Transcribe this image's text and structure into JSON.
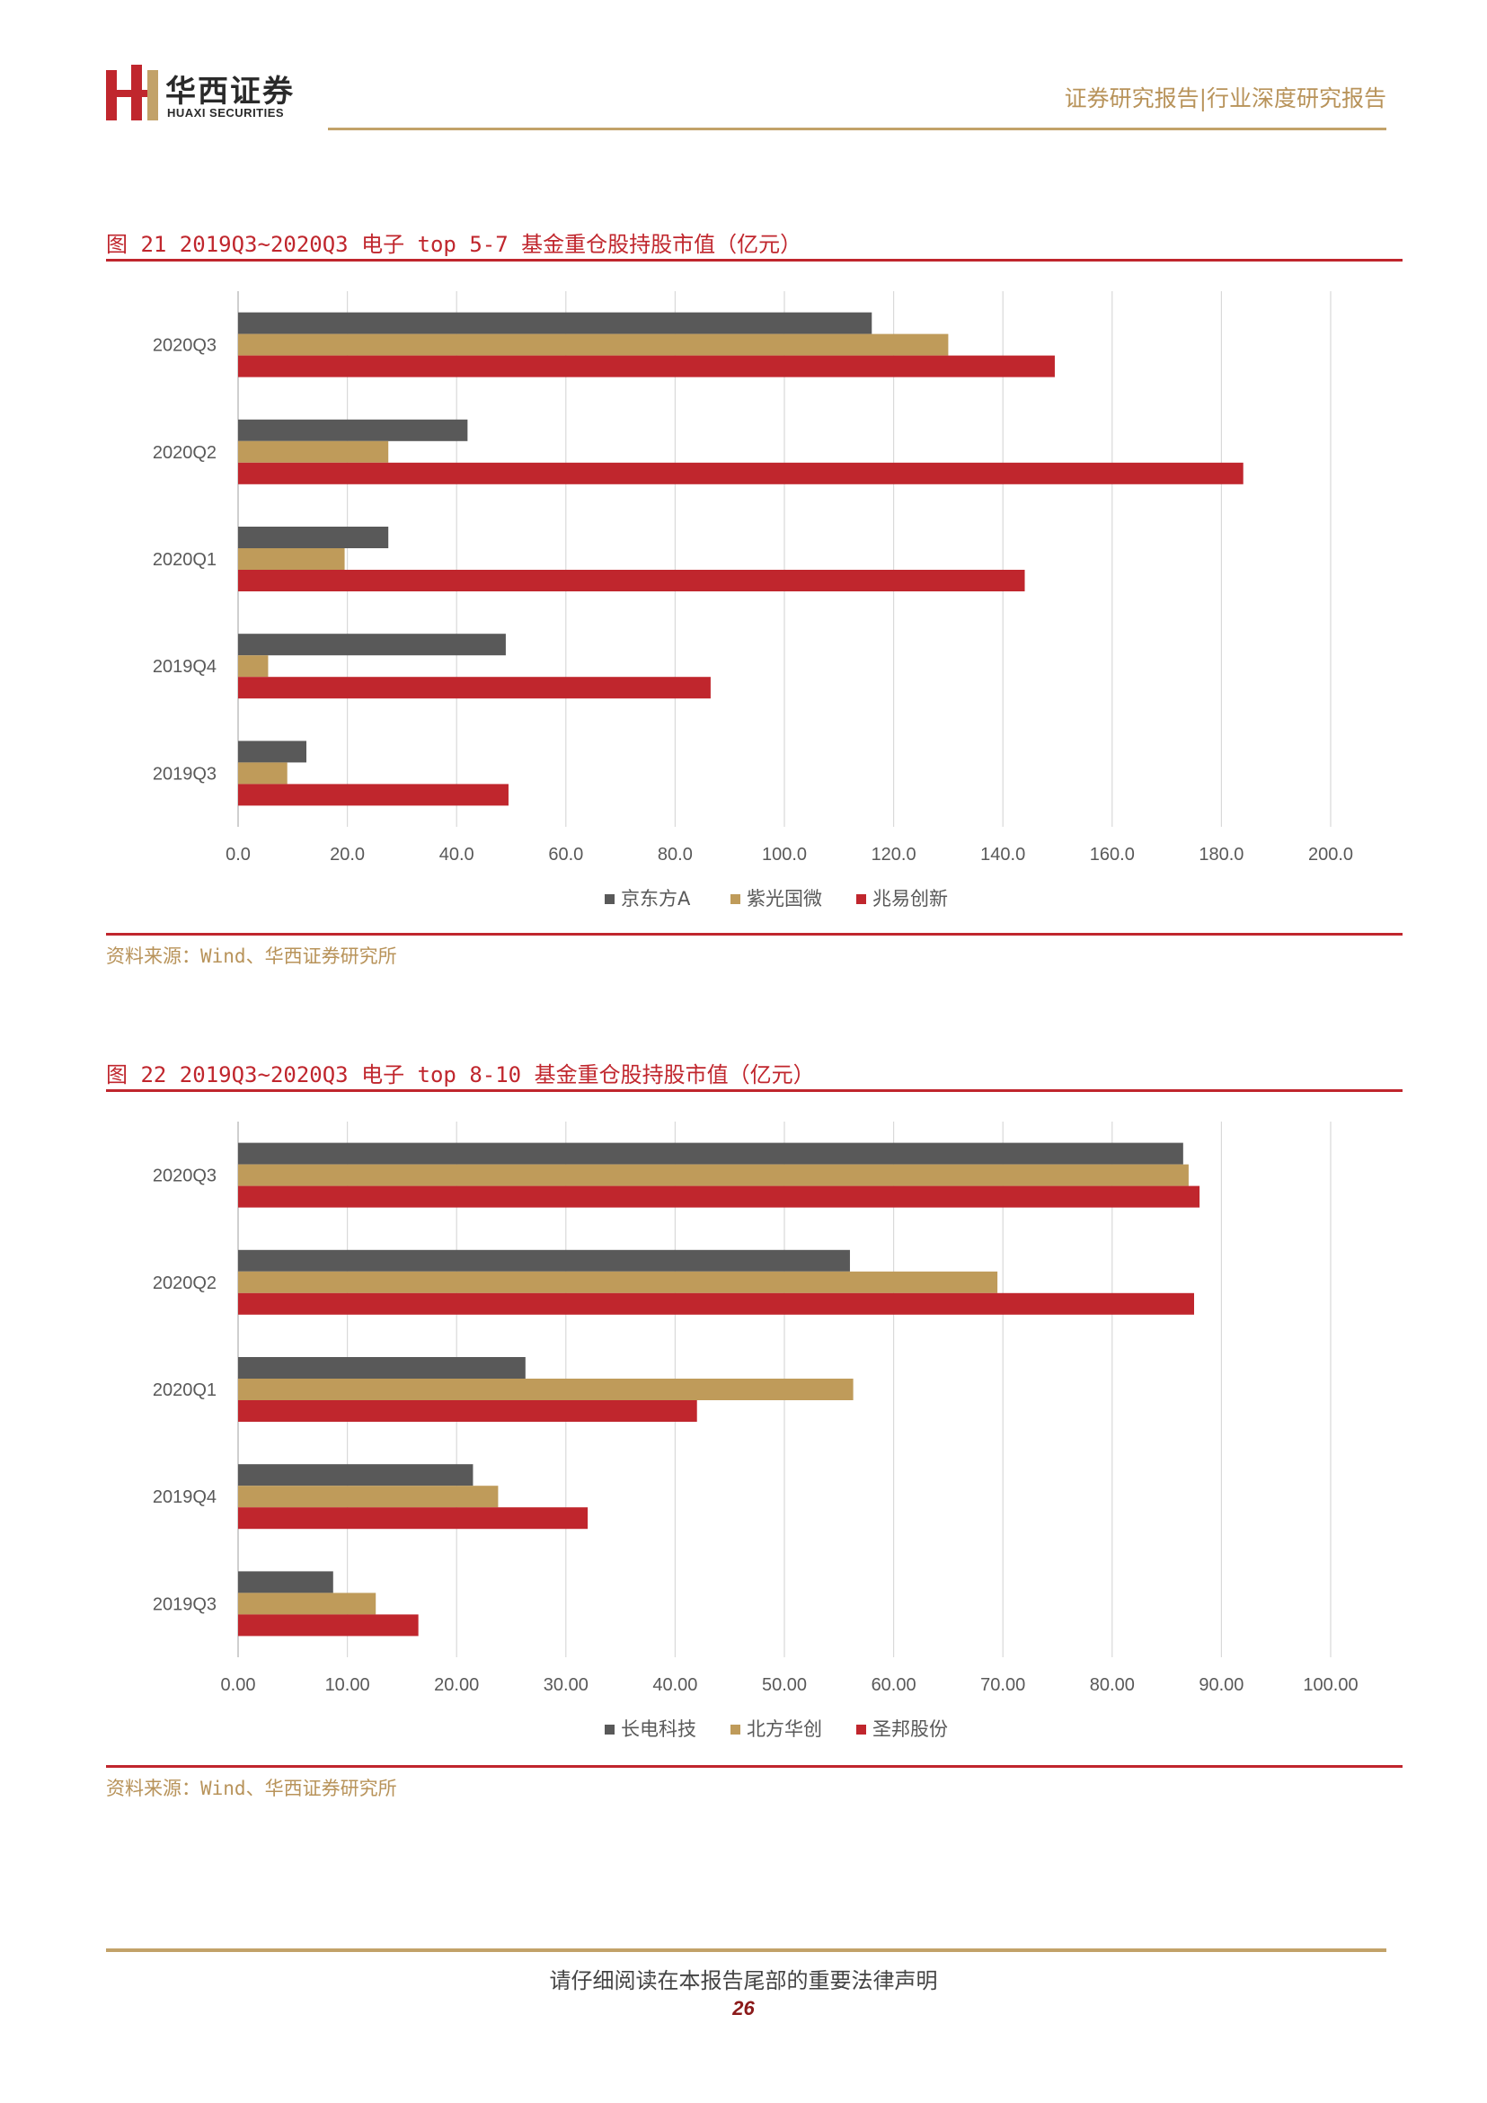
{
  "header": {
    "logo_cn": "华西证券",
    "logo_en": "HUAXI SECURITIES",
    "report_type": "证券研究报告|行业深度研究报告"
  },
  "figures": [
    {
      "title": "图 21 2019Q3~2020Q3 电子 top 5-7 基金重仓股持股市值（亿元）",
      "source": "资料来源：Wind、华西证券研究所"
    },
    {
      "title": "图 22 2019Q3~2020Q3 电子 top 8-10 基金重仓股持股市值（亿元）",
      "source": "资料来源：Wind、华西证券研究所"
    }
  ],
  "chart_data": [
    {
      "type": "bar",
      "orientation": "horizontal",
      "categories": [
        "2020Q3",
        "2020Q2",
        "2020Q1",
        "2019Q4",
        "2019Q3"
      ],
      "series": [
        {
          "name": "京东方A",
          "color": "#595959",
          "values": [
            116.0,
            42.0,
            27.5,
            49.0,
            12.5
          ]
        },
        {
          "name": "紫光国微",
          "color": "#bf9b5a",
          "values": [
            130.0,
            27.5,
            19.5,
            5.5,
            9.0
          ]
        },
        {
          "name": "兆易创新",
          "color": "#c0262d",
          "values": [
            149.5,
            184.0,
            144.0,
            86.5,
            49.5
          ]
        }
      ],
      "xlim": [
        0,
        200
      ],
      "ticks": [
        "0.0",
        "20.0",
        "40.0",
        "60.0",
        "80.0",
        "100.0",
        "120.0",
        "140.0",
        "160.0",
        "180.0",
        "200.0"
      ],
      "grid": true,
      "legend": "bottom"
    },
    {
      "type": "bar",
      "orientation": "horizontal",
      "categories": [
        "2020Q3",
        "2020Q2",
        "2020Q1",
        "2019Q4",
        "2019Q3"
      ],
      "series": [
        {
          "name": "长电科技",
          "color": "#595959",
          "values": [
            86.5,
            56.0,
            26.3,
            21.5,
            8.7
          ]
        },
        {
          "name": "北方华创",
          "color": "#bf9b5a",
          "values": [
            87.0,
            69.5,
            56.3,
            23.8,
            12.6
          ]
        },
        {
          "name": "圣邦股份",
          "color": "#c0262d",
          "values": [
            88.0,
            87.5,
            42.0,
            32.0,
            16.5
          ]
        }
      ],
      "xlim": [
        0,
        100
      ],
      "ticks": [
        "0.00",
        "10.00",
        "20.00",
        "30.00",
        "40.00",
        "50.00",
        "60.00",
        "70.00",
        "80.00",
        "90.00",
        "100.00"
      ],
      "grid": true,
      "legend": "bottom"
    }
  ],
  "footer": {
    "notice": "请仔细阅读在本报告尾部的重要法律声明",
    "page": "26"
  }
}
